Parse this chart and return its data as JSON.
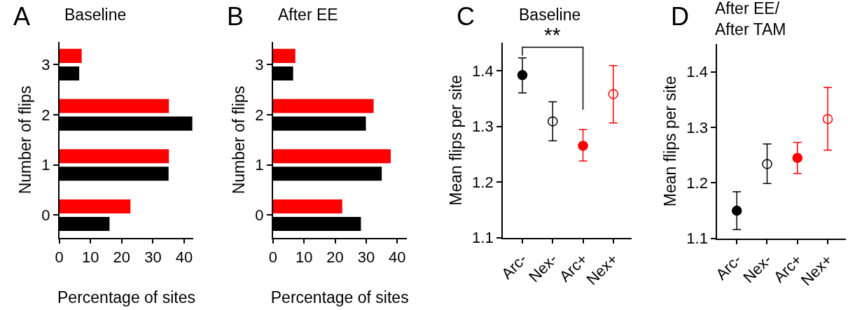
{
  "chart_data": [
    {
      "type": "bar",
      "orientation": "horizontal",
      "title": "Baseline",
      "xlabel": "Percentage of sites",
      "ylabel": "Number of flips",
      "annotations": [
        "A"
      ],
      "categories": [
        "3",
        "2",
        "1",
        "0"
      ],
      "series": [
        {
          "color": "#000000",
          "values": [
            6.4,
            42.6,
            35.0,
            16.1
          ]
        },
        {
          "color": "#ff0000",
          "values": [
            7.2,
            35.1,
            35.1,
            22.8
          ]
        }
      ],
      "xlim": [
        0,
        43
      ],
      "xticks": [
        0,
        10,
        20,
        30,
        40
      ]
    },
    {
      "type": "bar",
      "orientation": "horizontal",
      "title": "After EE",
      "xlabel": "Percentage of sites",
      "ylabel": "Number of flips",
      "annotations": [
        "B"
      ],
      "categories": [
        "3",
        "2",
        "1",
        "0"
      ],
      "series": [
        {
          "color": "#000000",
          "values": [
            6.5,
            29.9,
            35.0,
            28.3
          ]
        },
        {
          "color": "#ff0000",
          "values": [
            7.2,
            32.4,
            37.9,
            22.3
          ]
        }
      ],
      "xlim": [
        0,
        43
      ],
      "xticks": [
        0,
        10,
        20,
        30,
        40
      ]
    },
    {
      "type": "scatter",
      "title": "Baseline",
      "ylabel": "Mean flips per site",
      "annotations": [
        "C",
        "**"
      ],
      "categories": [
        "Arc-",
        "Nex-",
        "Arc+",
        "Nex+"
      ],
      "series": [
        {
          "marker": "circle",
          "colors": [
            "#000000",
            null,
            "#ff0000",
            null
          ],
          "values": [
            1.392,
            null,
            1.265,
            null
          ],
          "errors": [
            [
              1.36,
              1.423
            ],
            null,
            [
              1.238,
              1.294
            ],
            null
          ]
        },
        {
          "marker": "circle-open",
          "colors": [
            null,
            "#000000",
            null,
            "#ff0000"
          ],
          "values": [
            null,
            1.309,
            null,
            1.358
          ],
          "errors": [
            null,
            [
              1.274,
              1.344
            ],
            null,
            [
              1.306,
              1.409
            ]
          ]
        }
      ],
      "ylim": [
        1.1,
        1.45
      ],
      "yticks": [
        1.1,
        1.2,
        1.3,
        1.4
      ]
    },
    {
      "type": "scatter",
      "title": "After EE/\nAfter TAM",
      "ylabel": "Mean flips per site",
      "annotations": [
        "D"
      ],
      "categories": [
        "Arc-",
        "Nex-",
        "Arc+",
        "Nex+"
      ],
      "series": [
        {
          "marker": "circle",
          "colors": [
            "#000000",
            null,
            "#ff0000",
            null
          ],
          "values": [
            1.15,
            null,
            1.245,
            null
          ],
          "errors": [
            [
              1.116,
              1.184
            ],
            null,
            [
              1.217,
              1.273
            ],
            null
          ]
        },
        {
          "marker": "circle-open",
          "colors": [
            null,
            "#000000",
            null,
            "#ff0000"
          ],
          "values": [
            null,
            1.234,
            null,
            1.315
          ],
          "errors": [
            null,
            [
              1.199,
              1.27
            ],
            null,
            [
              1.259,
              1.372
            ]
          ]
        }
      ],
      "ylim": [
        1.1,
        1.45
      ],
      "yticks": [
        1.1,
        1.2,
        1.3,
        1.4
      ]
    }
  ]
}
